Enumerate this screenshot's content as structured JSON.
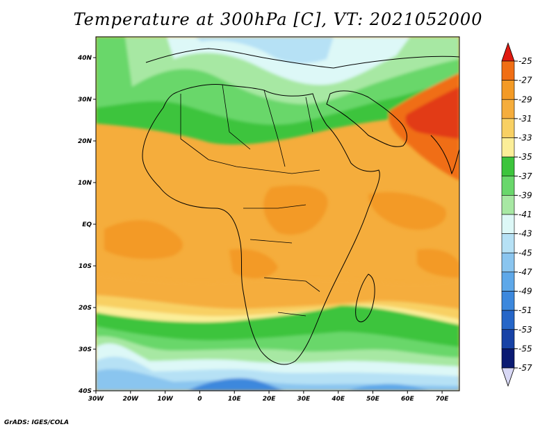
{
  "title": "Temperature at 300hPa [C], VT: 2021052000",
  "credit": "GrADS: IGES/COLA",
  "map": {
    "lon_range": [
      -30,
      75
    ],
    "lat_range": [
      -40,
      45
    ],
    "lat_ticks": [
      {
        "value": 40,
        "label": "40N"
      },
      {
        "value": 30,
        "label": "30N"
      },
      {
        "value": 20,
        "label": "20N"
      },
      {
        "value": 10,
        "label": "10N"
      },
      {
        "value": 0,
        "label": "EQ"
      },
      {
        "value": -10,
        "label": "10S"
      },
      {
        "value": -20,
        "label": "20S"
      },
      {
        "value": -30,
        "label": "30S"
      },
      {
        "value": -40,
        "label": "40S"
      }
    ],
    "lon_ticks": [
      {
        "value": -30,
        "label": "30W"
      },
      {
        "value": -20,
        "label": "20W"
      },
      {
        "value": -10,
        "label": "10W"
      },
      {
        "value": 0,
        "label": "0"
      },
      {
        "value": 10,
        "label": "10E"
      },
      {
        "value": 20,
        "label": "20E"
      },
      {
        "value": 30,
        "label": "30E"
      },
      {
        "value": 40,
        "label": "40E"
      },
      {
        "value": 50,
        "label": "50E"
      },
      {
        "value": 60,
        "label": "60E"
      },
      {
        "value": 70,
        "label": "70E"
      }
    ]
  },
  "colorbar": {
    "levels": [
      {
        "label": "-25",
        "color": "#e23a14"
      },
      {
        "label": "-27",
        "color": "#f06e14"
      },
      {
        "label": "-29",
        "color": "#f39a25"
      },
      {
        "label": "-31",
        "color": "#f5ad3c"
      },
      {
        "label": "-33",
        "color": "#f8d063"
      },
      {
        "label": "-35",
        "color": "#fbee98"
      },
      {
        "label": "-37",
        "color": "#3cc43c"
      },
      {
        "label": "-39",
        "color": "#69d76b"
      },
      {
        "label": "-41",
        "color": "#a7e8a3"
      },
      {
        "label": "-43",
        "color": "#ddf8f7"
      },
      {
        "label": "-45",
        "color": "#b6e1f5"
      },
      {
        "label": "-47",
        "color": "#8ac5ef"
      },
      {
        "label": "-49",
        "color": "#5ea8e9"
      },
      {
        "label": "-51",
        "color": "#3c88dd"
      },
      {
        "label": "-53",
        "color": "#2566c8"
      },
      {
        "label": "-55",
        "color": "#1742a6"
      },
      {
        "label": "-57",
        "color": "#0a1a72"
      }
    ],
    "top_color": "#e01a10",
    "bottom_color": "#d8d8f5"
  }
}
